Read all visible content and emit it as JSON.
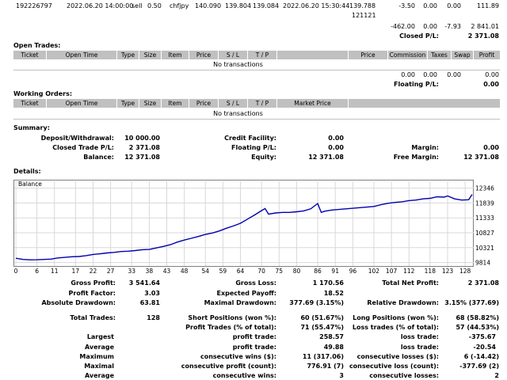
{
  "top_row": {
    "ticket": "192226797",
    "time": "2022.06.20 14:00:00",
    "type": "sell",
    "size": "0.50",
    "item": "chfjpy",
    "price": "140.090",
    "sl": "139.804",
    "tp": "139.084",
    "close_time": "2022.06.20 15:30:44",
    "close_price": "139.788",
    "close_price_2": "121121",
    "commission": "-3.50",
    "taxes": "0.00",
    "swap": "0.00",
    "profit": "111.89"
  },
  "closed_totals": {
    "commission": "-462.00",
    "taxes": "0.00",
    "swap": "-7.93",
    "profit": "2 841.01",
    "label": "Closed P/L:",
    "value": "2 371.08"
  },
  "open_trades": {
    "title": "Open Trades:",
    "columns": [
      "Ticket",
      "Open Time",
      "Type",
      "Size",
      "Item",
      "Price",
      "S / L",
      "T / P",
      "",
      "Price",
      "Commission",
      "Taxes",
      "Swap",
      "Profit"
    ],
    "empty": "No transactions",
    "totals": {
      "commission": "0.00",
      "taxes": "0.00",
      "swap": "0.00",
      "profit": "0.00"
    },
    "floating_label": "Floating P/L:",
    "floating_value": "0.00"
  },
  "working_orders": {
    "title": "Working Orders:",
    "columns": [
      "Ticket",
      "Open Time",
      "Type",
      "Size",
      "Item",
      "Price",
      "S / L",
      "T / P",
      "Market Price"
    ],
    "empty": "No transactions"
  },
  "summary": {
    "title": "Summary:",
    "deposit_label": "Deposit/Withdrawal:",
    "deposit_value": "10 000.00",
    "credit_label": "Credit Facility:",
    "credit_value": "0.00",
    "closed_label": "Closed Trade P/L:",
    "closed_value": "2 371.08",
    "floating_label": "Floating P/L:",
    "floating_value": "0.00",
    "margin_label": "Margin:",
    "margin_value": "0.00",
    "balance_label": "Balance:",
    "balance_value": "12 371.08",
    "equity_label": "Equity:",
    "equity_value": "12 371.08",
    "free_margin_label": "Free Margin:",
    "free_margin_value": "12 371.08"
  },
  "details_title": "Details:",
  "chart_data": {
    "type": "line",
    "legend": "Balance",
    "x_ticks": [
      0,
      6,
      11,
      17,
      22,
      27,
      33,
      38,
      43,
      48,
      54,
      59,
      64,
      70,
      75,
      80,
      86,
      91,
      96,
      102,
      107,
      112,
      118,
      123,
      128
    ],
    "y_ticks": [
      12346,
      11839,
      11333,
      10827,
      10321,
      9814
    ],
    "xlim": [
      0,
      130
    ],
    "ylim": [
      9750,
      12470
    ],
    "series": [
      {
        "color": "#0000b0",
        "x": [
          0,
          2,
          4,
          6,
          8,
          10,
          12,
          14,
          16,
          18,
          20,
          22,
          24,
          26,
          28,
          30,
          32,
          34,
          36,
          38,
          40,
          42,
          44,
          46,
          48,
          50,
          52,
          54,
          56,
          58,
          60,
          62,
          64,
          66,
          68,
          70,
          71,
          72,
          74,
          76,
          78,
          80,
          82,
          84,
          86,
          87,
          88,
          90,
          92,
          94,
          96,
          98,
          100,
          102,
          104,
          106,
          108,
          110,
          112,
          114,
          116,
          118,
          120,
          122,
          123,
          125,
          127,
          129,
          130
        ],
        "y": [
          9960,
          9920,
          9905,
          9910,
          9920,
          9930,
          9970,
          9990,
          10010,
          10020,
          10050,
          10090,
          10110,
          10140,
          10160,
          10190,
          10200,
          10220,
          10250,
          10260,
          10310,
          10360,
          10420,
          10510,
          10580,
          10640,
          10700,
          10770,
          10820,
          10890,
          10980,
          11060,
          11150,
          11290,
          11430,
          11580,
          11650,
          11460,
          11500,
          11520,
          11520,
          11540,
          11570,
          11640,
          11820,
          11520,
          11560,
          11600,
          11620,
          11640,
          11660,
          11680,
          11700,
          11720,
          11780,
          11830,
          11860,
          11880,
          11920,
          11940,
          11980,
          12000,
          12050,
          12040,
          12080,
          11980,
          11940,
          11950,
          12130
        ]
      }
    ]
  },
  "stats": {
    "gross_profit_label": "Gross Profit:",
    "gross_profit": "3 541.64",
    "gross_loss_label": "Gross Loss:",
    "gross_loss": "1 170.56",
    "total_net_label": "Total Net Profit:",
    "total_net": "2 371.08",
    "profit_factor_label": "Profit Factor:",
    "profit_factor": "3.03",
    "expected_payoff_label": "Expected Payoff:",
    "expected_payoff": "18.52",
    "abs_dd_label": "Absolute Drawdown:",
    "abs_dd": "63.81",
    "max_dd_label": "Maximal Drawdown:",
    "max_dd": "377.69 (3.15%)",
    "rel_dd_label": "Relative Drawdown:",
    "rel_dd": "3.15% (377.69)",
    "total_trades_label": "Total Trades:",
    "total_trades": "128",
    "short_label": "Short Positions (won %):",
    "short": "60 (51.67%)",
    "long_label": "Long Positions (won %):",
    "long": "68 (58.82%)",
    "profit_trades_label": "Profit Trades (% of total):",
    "profit_trades": "71 (55.47%)",
    "loss_trades_label": "Loss trades (% of total):",
    "loss_trades": "57 (44.53%)",
    "largest_label": "Largest",
    "largest_profit_label": "profit trade:",
    "largest_profit": "258.57",
    "largest_loss_label": "loss trade:",
    "largest_loss": "-375.67",
    "average_label": "Average",
    "avg_profit_label": "profit trade:",
    "avg_profit": "49.88",
    "avg_loss_label": "loss trade:",
    "avg_loss": "-20.54",
    "maximum_label": "Maximum",
    "max_cons_wins_label": "consecutive wins ($):",
    "max_cons_wins": "11 (317.06)",
    "max_cons_losses_label": "consecutive losses ($):",
    "max_cons_losses": "6 (-14.42)",
    "maximal_label": "Maximal",
    "maximal_profit_label": "consecutive profit (count):",
    "maximal_profit": "776.91 (7)",
    "maximal_loss_label": "consecutive loss (count):",
    "maximal_loss": "-377.69 (2)",
    "average2_label": "Average",
    "avg_cons_wins_label": "consecutive wins:",
    "avg_cons_wins": "3",
    "avg_cons_losses_label": "consecutive losses:",
    "avg_cons_losses": "2"
  }
}
